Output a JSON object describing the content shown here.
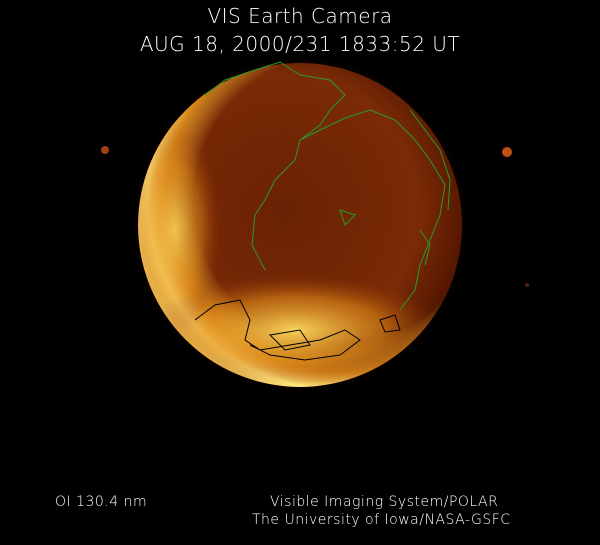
{
  "header": {
    "title": "VIS Earth Camera",
    "timestamp": "AUG 18, 2000/231 1833:52 UT"
  },
  "footer": {
    "filter": "OI  130.4 nm",
    "instrument": "Visible Imaging System/POLAR",
    "institution": "The University of Iowa/NASA-GSFC"
  },
  "colors": {
    "background": "#000000",
    "coastline_day": "#2a9a2a",
    "coastline_aurora": "#000000",
    "glow_bright": "#ffe070",
    "glow_dark": "#3a0c00"
  }
}
